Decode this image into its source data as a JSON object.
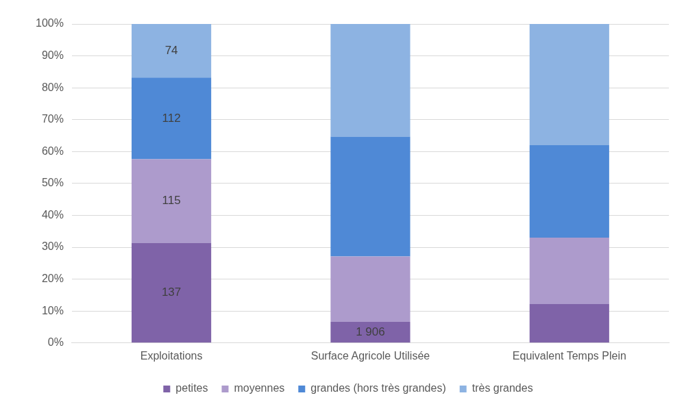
{
  "chart_data": {
    "type": "bar",
    "stacked": true,
    "categories": [
      "Exploitations",
      "Surface Agricole Utilisée",
      "Equivalent Temps Plein"
    ],
    "series": [
      {
        "name": "petites",
        "color": "#7f63a8",
        "values": [
          31.3,
          6.6,
          12.2
        ]
      },
      {
        "name": "moyennes",
        "color": "#ad9bcc",
        "values": [
          26.3,
          20.5,
          20.8
        ]
      },
      {
        "name": "grandes (hors très grandes)",
        "color": "#4f89d6",
        "values": [
          25.6,
          37.6,
          29.0
        ]
      },
      {
        "name": "très grandes",
        "color": "#8db3e2",
        "values": [
          16.8,
          35.3,
          38.0
        ]
      }
    ],
    "annotations": [
      "137",
      "115",
      "112",
      "74",
      "1 906"
    ],
    "ylim": [
      0,
      100
    ],
    "yticks": [
      {
        "value": 0,
        "label": "0%"
      },
      {
        "value": 10,
        "label": "10%"
      },
      {
        "value": 20,
        "label": "20%"
      },
      {
        "value": 30,
        "label": "30%"
      },
      {
        "value": 40,
        "label": "40%"
      },
      {
        "value": 50,
        "label": "50%"
      },
      {
        "value": 60,
        "label": "60%"
      },
      {
        "value": 70,
        "label": "70%"
      },
      {
        "value": 80,
        "label": "80%"
      },
      {
        "value": 90,
        "label": "90%"
      },
      {
        "value": 100,
        "label": "100%"
      }
    ],
    "grid": "y",
    "legend": "bottom"
  }
}
